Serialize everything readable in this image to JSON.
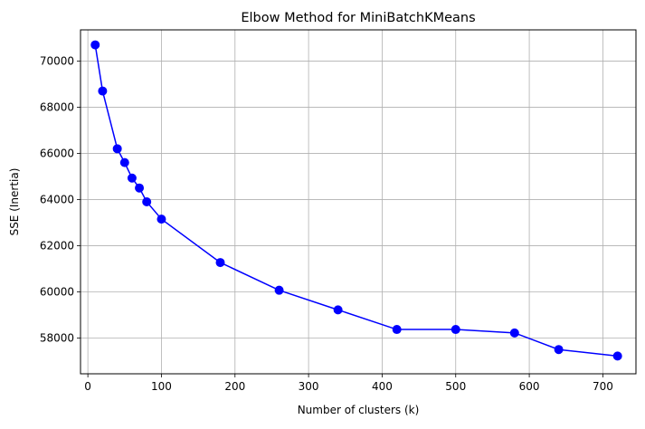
{
  "chart_data": {
    "type": "line",
    "title": "Elbow Method for MiniBatchKMeans",
    "xlabel": "Number of clusters (k)",
    "ylabel": "SSE (Inertia)",
    "xlim": [
      -10,
      745
    ],
    "ylim": [
      56450,
      71350
    ],
    "xticks": [
      0,
      100,
      200,
      300,
      400,
      500,
      600,
      700
    ],
    "yticks": [
      58000,
      60000,
      62000,
      64000,
      66000,
      68000,
      70000
    ],
    "grid": true,
    "series": [
      {
        "color": "#0000ff",
        "marker": "circle",
        "x": [
          10,
          20,
          40,
          50,
          60,
          70,
          80,
          100,
          180,
          260,
          340,
          420,
          500,
          580,
          640,
          720
        ],
        "y": [
          70700,
          68700,
          66200,
          65600,
          64930,
          64500,
          63900,
          63150,
          61270,
          60070,
          59220,
          58370,
          58370,
          58220,
          57500,
          57220
        ]
      }
    ]
  }
}
